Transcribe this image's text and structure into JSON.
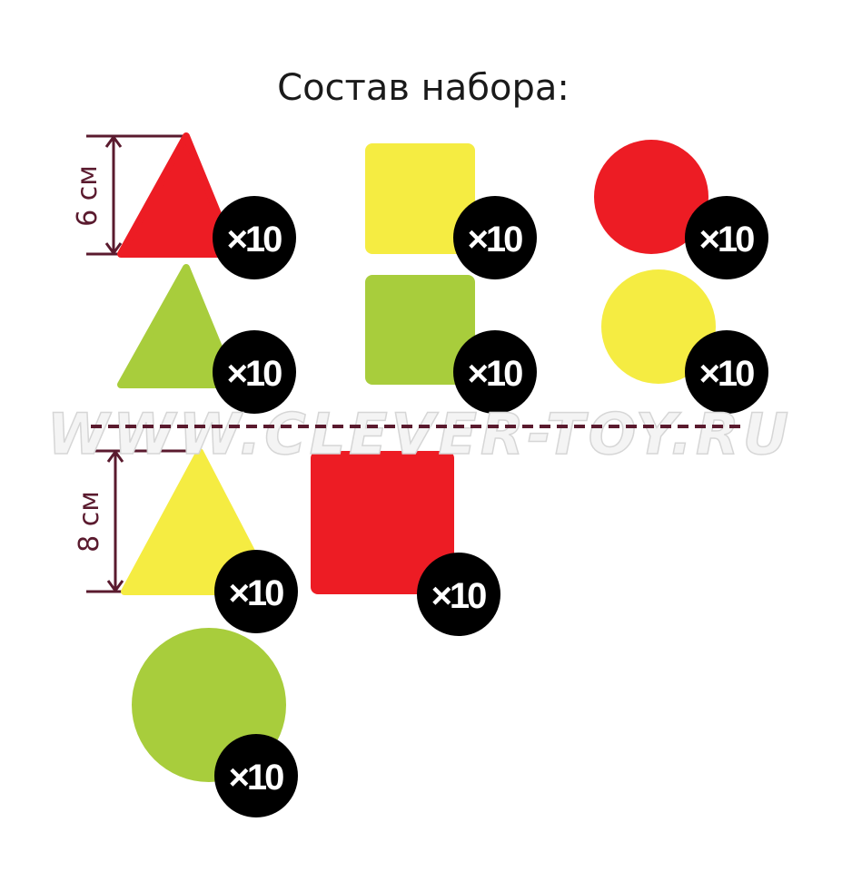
{
  "title": "Состав набора:",
  "watermark": "WWW.CLEVER-TOY.RU",
  "colors": {
    "red": "#ed1c24",
    "yellow": "#f5ec42",
    "green": "#a8cd3c",
    "dimension": "#5a1a2e",
    "badge": "#000000"
  },
  "dimensions": {
    "small": "6 см",
    "large": "8 см"
  },
  "items": [
    {
      "shape": "triangle",
      "color": "red",
      "size": "6 см",
      "count": "×10"
    },
    {
      "shape": "square",
      "color": "yellow",
      "size": "6 см",
      "count": "×10"
    },
    {
      "shape": "circle",
      "color": "red",
      "size": "6 см",
      "count": "×10"
    },
    {
      "shape": "triangle",
      "color": "green",
      "size": "6 см",
      "count": "×10"
    },
    {
      "shape": "square",
      "color": "green",
      "size": "6 см",
      "count": "×10"
    },
    {
      "shape": "circle",
      "color": "yellow",
      "size": "6 см",
      "count": "×10"
    },
    {
      "shape": "triangle",
      "color": "yellow",
      "size": "8 см",
      "count": "×10"
    },
    {
      "shape": "square",
      "color": "red",
      "size": "8 см",
      "count": "×10"
    },
    {
      "shape": "circle",
      "color": "green",
      "size": "8 см",
      "count": "×10"
    }
  ]
}
